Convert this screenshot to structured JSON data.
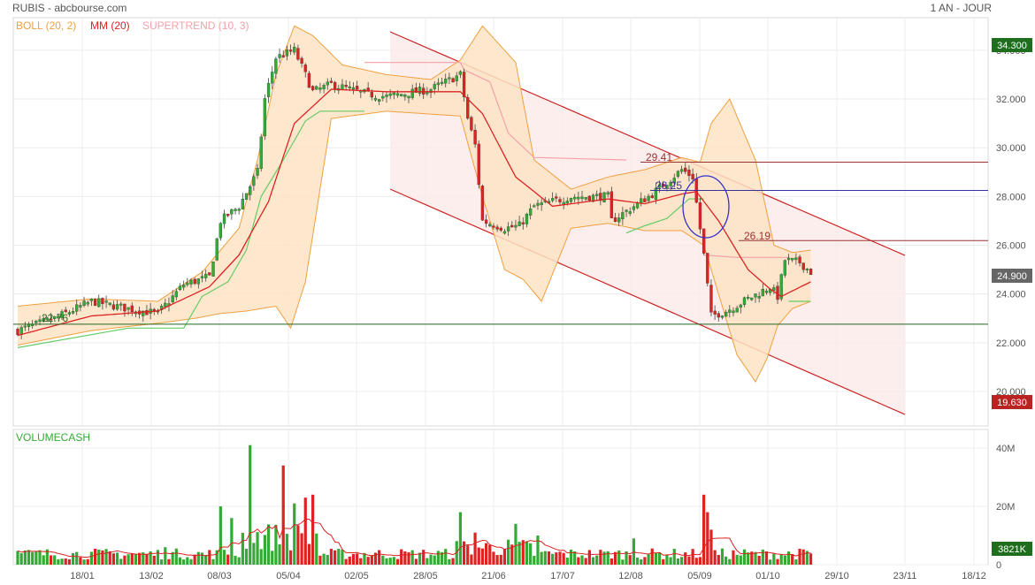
{
  "header": {
    "title": "RUBIS - abcbourse.com",
    "period": "1 AN - JOUR",
    "indicators": [
      {
        "label": "BOLL (20, 2)",
        "color": "#f0a040"
      },
      {
        "label": "MM (20)",
        "color": "#dd2222"
      },
      {
        "label": "SUPERTREND (10, 3)",
        "color": "#f4a0a8"
      }
    ]
  },
  "volume_panel": {
    "title": "VOLUMECASH"
  },
  "badges": {
    "high": "34.300",
    "last": "24.900",
    "low": "19.630",
    "volume": "3821K"
  },
  "annotations": {
    "l_2941": "29.41",
    "l_2825": "28.25",
    "l_2619": "26.19",
    "l_2276": "22.76"
  },
  "colors": {
    "up": "#33aa33",
    "down": "#dd2222",
    "ma": "#dd2222",
    "boll_fill": "#fde3c4",
    "boll_line": "#f0a040",
    "supertrend_up": "#66cc66",
    "supertrend_down": "#f4a0a8",
    "channel": "#cc2222",
    "channel_fill": "#fdeaea",
    "resistance": "#993333",
    "support": "#226622",
    "blue_line": "#333399",
    "ellipse": "#3333cc",
    "badge_green": "#1e6e1e",
    "badge_gray": "#666666",
    "badge_red": "#bb2222"
  },
  "chart_data": [
    {
      "type": "candlestick",
      "name": "price",
      "ylim": [
        19.0,
        35.0
      ],
      "y_ticks": [
        "20.000",
        "22.000",
        "24.000",
        "26.000",
        "28.000",
        "30.000",
        "32.000",
        "34.000"
      ],
      "y_tick_values": [
        20,
        22,
        24,
        26,
        28,
        30,
        32,
        34
      ],
      "x_tick_labels": [
        "18/01",
        "13/02",
        "08/03",
        "05/04",
        "02/05",
        "28/05",
        "21/06",
        "17/07",
        "12/08",
        "05/09",
        "01/10",
        "29/10",
        "23/11",
        "18/12"
      ],
      "close_keyframes": [
        [
          0,
          22.5
        ],
        [
          10,
          23.0
        ],
        [
          20,
          23.7
        ],
        [
          30,
          23.4
        ],
        [
          38,
          23.2
        ],
        [
          45,
          24.4
        ],
        [
          52,
          24.7
        ],
        [
          55,
          27.0
        ],
        [
          60,
          27.6
        ],
        [
          65,
          29.0
        ],
        [
          67,
          32.0
        ],
        [
          70,
          33.7
        ],
        [
          75,
          34.0
        ],
        [
          80,
          32.3
        ],
        [
          85,
          32.6
        ],
        [
          95,
          32.2
        ],
        [
          100,
          32.1
        ],
        [
          112,
          32.4
        ],
        [
          120,
          33.0
        ],
        [
          122,
          31.2
        ],
        [
          124,
          30.1
        ],
        [
          126,
          27.0
        ],
        [
          132,
          26.7
        ],
        [
          136,
          26.8
        ],
        [
          140,
          27.6
        ],
        [
          150,
          28.0
        ],
        [
          160,
          28.0
        ],
        [
          161,
          27.0
        ],
        [
          166,
          27.5
        ],
        [
          172,
          28.1
        ],
        [
          180,
          29.1
        ],
        [
          183,
          28.8
        ],
        [
          186,
          25.6
        ],
        [
          188,
          23.1
        ],
        [
          192,
          23.3
        ],
        [
          198,
          23.8
        ],
        [
          204,
          24.3
        ],
        [
          206,
          23.9
        ],
        [
          208,
          25.4
        ],
        [
          212,
          25.3
        ],
        [
          215,
          24.9
        ]
      ],
      "highest": 34.3,
      "lowest": 19.63,
      "last": 24.9
    },
    {
      "type": "line",
      "name": "MM (20)",
      "close_keyframes": [
        [
          0,
          22.3
        ],
        [
          20,
          23.1
        ],
        [
          38,
          23.3
        ],
        [
          52,
          24.3
        ],
        [
          60,
          25.6
        ],
        [
          68,
          27.8
        ],
        [
          75,
          31.0
        ],
        [
          85,
          32.4
        ],
        [
          100,
          32.3
        ],
        [
          120,
          32.3
        ],
        [
          126,
          31.4
        ],
        [
          135,
          28.8
        ],
        [
          145,
          27.6
        ],
        [
          160,
          27.9
        ],
        [
          170,
          27.7
        ],
        [
          180,
          28.1
        ],
        [
          184,
          28.2
        ],
        [
          190,
          27.0
        ],
        [
          198,
          25.0
        ],
        [
          204,
          24.2
        ],
        [
          207,
          23.9
        ],
        [
          215,
          24.5
        ]
      ]
    },
    {
      "type": "area",
      "name": "BOLL (20, 2)",
      "upper_keyframes": [
        [
          0,
          23.5
        ],
        [
          20,
          23.8
        ],
        [
          38,
          23.7
        ],
        [
          50,
          24.9
        ],
        [
          60,
          26.7
        ],
        [
          65,
          29.5
        ],
        [
          70,
          33.0
        ],
        [
          75,
          35.0
        ],
        [
          80,
          34.6
        ],
        [
          88,
          33.4
        ],
        [
          100,
          33.0
        ],
        [
          112,
          32.8
        ],
        [
          120,
          33.6
        ],
        [
          126,
          35.0
        ],
        [
          135,
          33.5
        ],
        [
          140,
          29.5
        ],
        [
          150,
          28.3
        ],
        [
          160,
          28.8
        ],
        [
          170,
          29.1
        ],
        [
          180,
          29.6
        ],
        [
          185,
          29.4
        ],
        [
          188,
          31.0
        ],
        [
          193,
          32.0
        ],
        [
          200,
          29.5
        ],
        [
          205,
          26.0
        ],
        [
          210,
          25.7
        ],
        [
          215,
          25.8
        ]
      ],
      "lower_keyframes": [
        [
          0,
          21.9
        ],
        [
          20,
          22.5
        ],
        [
          38,
          22.8
        ],
        [
          48,
          23.0
        ],
        [
          55,
          23.2
        ],
        [
          62,
          23.3
        ],
        [
          70,
          23.5
        ],
        [
          74,
          22.6
        ],
        [
          78,
          24.5
        ],
        [
          85,
          31.2
        ],
        [
          100,
          31.5
        ],
        [
          120,
          31.3
        ],
        [
          126,
          28.0
        ],
        [
          132,
          25.0
        ],
        [
          137,
          24.6
        ],
        [
          142,
          23.7
        ],
        [
          150,
          26.7
        ],
        [
          160,
          26.9
        ],
        [
          170,
          26.6
        ],
        [
          180,
          26.6
        ],
        [
          186,
          26.0
        ],
        [
          190,
          24.0
        ],
        [
          195,
          21.5
        ],
        [
          200,
          20.4
        ],
        [
          203,
          21.3
        ],
        [
          206,
          22.7
        ],
        [
          210,
          23.4
        ],
        [
          215,
          23.7
        ]
      ]
    },
    {
      "type": "line",
      "name": "SUPERTREND (10, 3)",
      "segments": [
        {
          "dir": "up",
          "points": [
            [
              0,
              21.8
            ],
            [
              30,
              22.6
            ],
            [
              45,
              22.6
            ],
            [
              50,
              23.9
            ],
            [
              57,
              24.5
            ],
            [
              62,
              25.8
            ],
            [
              66,
              28.0
            ],
            [
              72,
              29.5
            ],
            [
              78,
              31.1
            ],
            [
              82,
              31.5
            ],
            [
              94,
              31.5
            ]
          ]
        },
        {
          "dir": "down",
          "points": [
            [
              94,
              33.5
            ],
            [
              120,
              33.5
            ],
            [
              121,
              33.2
            ],
            [
              128,
              32.7
            ],
            [
              133,
              30.6
            ],
            [
              140,
              29.6
            ],
            [
              165,
              29.5
            ]
          ]
        },
        {
          "dir": "up",
          "points": [
            [
              165,
              26.5
            ],
            [
              170,
              26.8
            ],
            [
              176,
              27.1
            ],
            [
              182,
              27.9
            ],
            [
              186,
              27.9
            ]
          ]
        },
        {
          "dir": "down",
          "points": [
            [
              186,
              25.6
            ],
            [
              195,
              25.5
            ],
            [
              205,
              25.5
            ],
            [
              209,
              25.5
            ]
          ]
        },
        {
          "dir": "up",
          "points": [
            [
              209,
              23.7
            ],
            [
              215,
              23.7
            ]
          ]
        }
      ]
    },
    {
      "type": "bar",
      "name": "VOLUMECASH",
      "ylim": [
        0,
        45
      ],
      "y_ticks": [
        "0",
        "20M",
        "40M"
      ],
      "y_tick_values": [
        0,
        20,
        40
      ],
      "spikes": [
        [
          40,
          6
        ],
        [
          55,
          20
        ],
        [
          58,
          16
        ],
        [
          63,
          41
        ],
        [
          72,
          34
        ],
        [
          75,
          21
        ],
        [
          78,
          23
        ],
        [
          80,
          24
        ],
        [
          120,
          18
        ],
        [
          124,
          11
        ],
        [
          135,
          14
        ],
        [
          141,
          10
        ],
        [
          167,
          9
        ],
        [
          186,
          24
        ],
        [
          187,
          18
        ],
        [
          188,
          12
        ]
      ],
      "base_volume": 3.5,
      "last": 3.821
    }
  ]
}
